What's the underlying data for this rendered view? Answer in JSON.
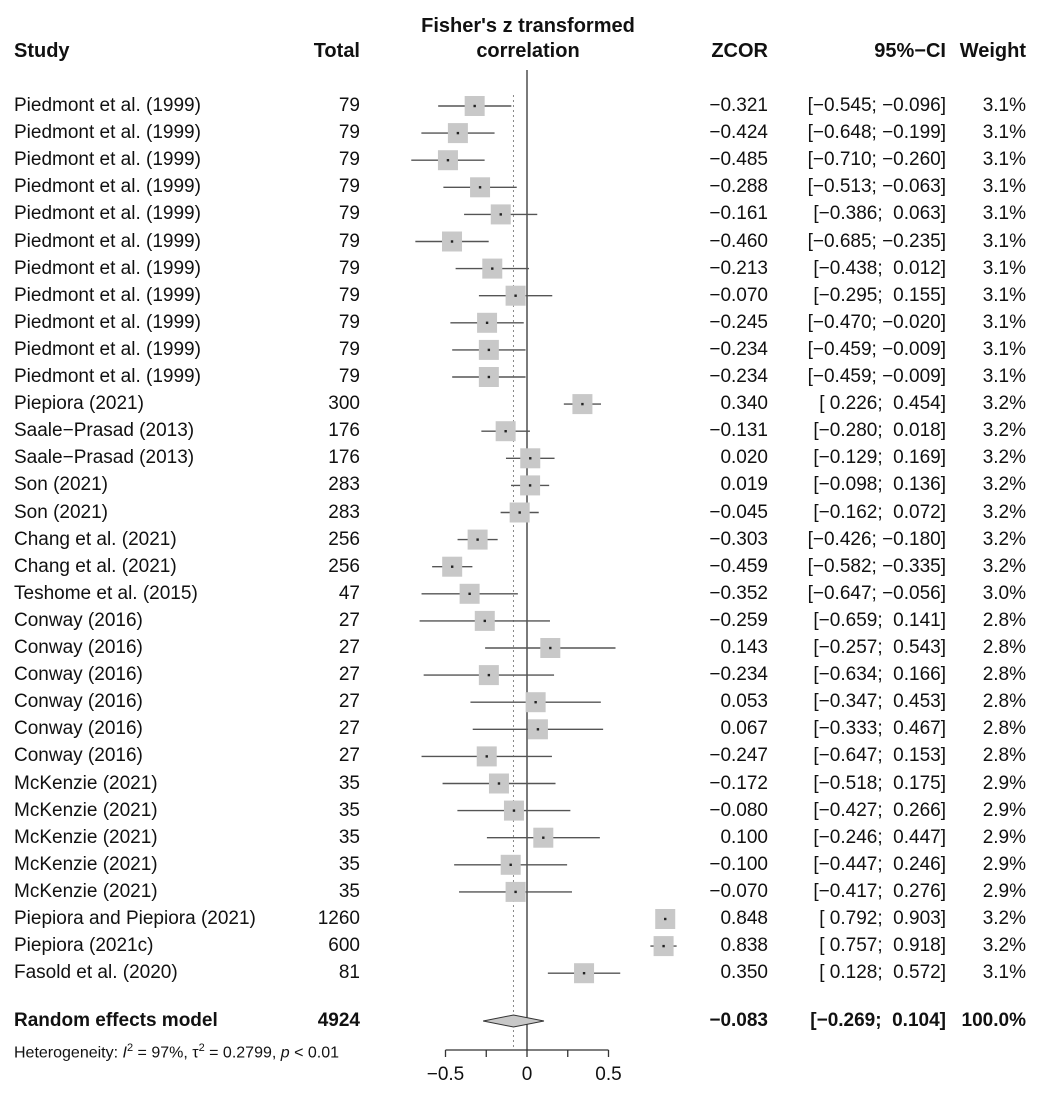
{
  "chart_data": {
    "type": "forest",
    "headers": {
      "study": "Study",
      "total": "Total",
      "plot_title_line1": "Fisher's z transformed",
      "plot_title_line2": "correlation",
      "zcor": "ZCOR",
      "ci": "95%−CI",
      "weight": "Weight"
    },
    "xlim": [
      -0.7,
      0.75
    ],
    "xticks": [
      -0.5,
      0,
      0.5
    ],
    "xtick_labels": [
      "−0.5",
      "0",
      "0.5"
    ],
    "studies": [
      {
        "study": "Piedmont et al. (1999)",
        "total": "79",
        "zcor": -0.321,
        "lo": -0.545,
        "hi": -0.096,
        "zcor_text": "−0.321",
        "ci_text": "[−0.545; −0.096]",
        "weight": "3.1%"
      },
      {
        "study": "Piedmont et al. (1999)",
        "total": "79",
        "zcor": -0.424,
        "lo": -0.648,
        "hi": -0.199,
        "zcor_text": "−0.424",
        "ci_text": "[−0.648; −0.199]",
        "weight": "3.1%"
      },
      {
        "study": "Piedmont et al. (1999)",
        "total": "79",
        "zcor": -0.485,
        "lo": -0.71,
        "hi": -0.26,
        "zcor_text": "−0.485",
        "ci_text": "[−0.710; −0.260]",
        "weight": "3.1%"
      },
      {
        "study": "Piedmont et al. (1999)",
        "total": "79",
        "zcor": -0.288,
        "lo": -0.513,
        "hi": -0.063,
        "zcor_text": "−0.288",
        "ci_text": "[−0.513; −0.063]",
        "weight": "3.1%"
      },
      {
        "study": "Piedmont et al. (1999)",
        "total": "79",
        "zcor": -0.161,
        "lo": -0.386,
        "hi": 0.063,
        "zcor_text": "−0.161",
        "ci_text": "[−0.386;  0.063]",
        "weight": "3.1%"
      },
      {
        "study": "Piedmont et al. (1999)",
        "total": "79",
        "zcor": -0.46,
        "lo": -0.685,
        "hi": -0.235,
        "zcor_text": "−0.460",
        "ci_text": "[−0.685; −0.235]",
        "weight": "3.1%"
      },
      {
        "study": "Piedmont et al. (1999)",
        "total": "79",
        "zcor": -0.213,
        "lo": -0.438,
        "hi": 0.012,
        "zcor_text": "−0.213",
        "ci_text": "[−0.438;  0.012]",
        "weight": "3.1%"
      },
      {
        "study": "Piedmont et al. (1999)",
        "total": "79",
        "zcor": -0.07,
        "lo": -0.295,
        "hi": 0.155,
        "zcor_text": "−0.070",
        "ci_text": "[−0.295;  0.155]",
        "weight": "3.1%"
      },
      {
        "study": "Piedmont et al. (1999)",
        "total": "79",
        "zcor": -0.245,
        "lo": -0.47,
        "hi": -0.02,
        "zcor_text": "−0.245",
        "ci_text": "[−0.470; −0.020]",
        "weight": "3.1%"
      },
      {
        "study": "Piedmont et al. (1999)",
        "total": "79",
        "zcor": -0.234,
        "lo": -0.459,
        "hi": -0.009,
        "zcor_text": "−0.234",
        "ci_text": "[−0.459; −0.009]",
        "weight": "3.1%"
      },
      {
        "study": "Piedmont et al. (1999)",
        "total": "79",
        "zcor": -0.234,
        "lo": -0.459,
        "hi": -0.009,
        "zcor_text": "−0.234",
        "ci_text": "[−0.459; −0.009]",
        "weight": "3.1%"
      },
      {
        "study": "Piepiora (2021)",
        "total": "300",
        "zcor": 0.34,
        "lo": 0.226,
        "hi": 0.454,
        "zcor_text": "0.340",
        "ci_text": "[ 0.226;  0.454]",
        "weight": "3.2%"
      },
      {
        "study": "Saale−Prasad (2013)",
        "total": "176",
        "zcor": -0.131,
        "lo": -0.28,
        "hi": 0.018,
        "zcor_text": "−0.131",
        "ci_text": "[−0.280;  0.018]",
        "weight": "3.2%"
      },
      {
        "study": "Saale−Prasad (2013)",
        "total": "176",
        "zcor": 0.02,
        "lo": -0.129,
        "hi": 0.169,
        "zcor_text": "0.020",
        "ci_text": "[−0.129;  0.169]",
        "weight": "3.2%"
      },
      {
        "study": "Son (2021)",
        "total": "283",
        "zcor": 0.019,
        "lo": -0.098,
        "hi": 0.136,
        "zcor_text": "0.019",
        "ci_text": "[−0.098;  0.136]",
        "weight": "3.2%"
      },
      {
        "study": "Son (2021)",
        "total": "283",
        "zcor": -0.045,
        "lo": -0.162,
        "hi": 0.072,
        "zcor_text": "−0.045",
        "ci_text": "[−0.162;  0.072]",
        "weight": "3.2%"
      },
      {
        "study": "Chang et al. (2021)",
        "total": "256",
        "zcor": -0.303,
        "lo": -0.426,
        "hi": -0.18,
        "zcor_text": "−0.303",
        "ci_text": "[−0.426; −0.180]",
        "weight": "3.2%"
      },
      {
        "study": "Chang et al. (2021)",
        "total": "256",
        "zcor": -0.459,
        "lo": -0.582,
        "hi": -0.335,
        "zcor_text": "−0.459",
        "ci_text": "[−0.582; −0.335]",
        "weight": "3.2%"
      },
      {
        "study": "Teshome et al. (2015)",
        "total": "47",
        "zcor": -0.352,
        "lo": -0.647,
        "hi": -0.056,
        "zcor_text": "−0.352",
        "ci_text": "[−0.647; −0.056]",
        "weight": "3.0%"
      },
      {
        "study": "Conway (2016)",
        "total": "27",
        "zcor": -0.259,
        "lo": -0.659,
        "hi": 0.141,
        "zcor_text": "−0.259",
        "ci_text": "[−0.659;  0.141]",
        "weight": "2.8%"
      },
      {
        "study": "Conway (2016)",
        "total": "27",
        "zcor": 0.143,
        "lo": -0.257,
        "hi": 0.543,
        "zcor_text": "0.143",
        "ci_text": "[−0.257;  0.543]",
        "weight": "2.8%"
      },
      {
        "study": "Conway (2016)",
        "total": "27",
        "zcor": -0.234,
        "lo": -0.634,
        "hi": 0.166,
        "zcor_text": "−0.234",
        "ci_text": "[−0.634;  0.166]",
        "weight": "2.8%"
      },
      {
        "study": "Conway (2016)",
        "total": "27",
        "zcor": 0.053,
        "lo": -0.347,
        "hi": 0.453,
        "zcor_text": "0.053",
        "ci_text": "[−0.347;  0.453]",
        "weight": "2.8%"
      },
      {
        "study": "Conway (2016)",
        "total": "27",
        "zcor": 0.067,
        "lo": -0.333,
        "hi": 0.467,
        "zcor_text": "0.067",
        "ci_text": "[−0.333;  0.467]",
        "weight": "2.8%"
      },
      {
        "study": "Conway (2016)",
        "total": "27",
        "zcor": -0.247,
        "lo": -0.647,
        "hi": 0.153,
        "zcor_text": "−0.247",
        "ci_text": "[−0.647;  0.153]",
        "weight": "2.8%"
      },
      {
        "study": "McKenzie (2021)",
        "total": "35",
        "zcor": -0.172,
        "lo": -0.518,
        "hi": 0.175,
        "zcor_text": "−0.172",
        "ci_text": "[−0.518;  0.175]",
        "weight": "2.9%"
      },
      {
        "study": "McKenzie (2021)",
        "total": "35",
        "zcor": -0.08,
        "lo": -0.427,
        "hi": 0.266,
        "zcor_text": "−0.080",
        "ci_text": "[−0.427;  0.266]",
        "weight": "2.9%"
      },
      {
        "study": "McKenzie (2021)",
        "total": "35",
        "zcor": 0.1,
        "lo": -0.246,
        "hi": 0.447,
        "zcor_text": "0.100",
        "ci_text": "[−0.246;  0.447]",
        "weight": "2.9%"
      },
      {
        "study": "McKenzie (2021)",
        "total": "35",
        "zcor": -0.1,
        "lo": -0.447,
        "hi": 0.246,
        "zcor_text": "−0.100",
        "ci_text": "[−0.447;  0.246]",
        "weight": "2.9%"
      },
      {
        "study": "McKenzie (2021)",
        "total": "35",
        "zcor": -0.07,
        "lo": -0.417,
        "hi": 0.276,
        "zcor_text": "−0.070",
        "ci_text": "[−0.417;  0.276]",
        "weight": "2.9%"
      },
      {
        "study": "Piepiora and Piepiora (2021)",
        "total": "1260",
        "zcor": 0.848,
        "lo": 0.792,
        "hi": 0.903,
        "zcor_text": "0.848",
        "ci_text": "[ 0.792;  0.903]",
        "weight": "3.2%"
      },
      {
        "study": "Piepiora (2021c)",
        "total": "600",
        "zcor": 0.838,
        "lo": 0.757,
        "hi": 0.918,
        "zcor_text": "0.838",
        "ci_text": "[ 0.757;  0.918]",
        "weight": "3.2%"
      },
      {
        "study": "Fasold et al. (2020)",
        "total": "81",
        "zcor": 0.35,
        "lo": 0.128,
        "hi": 0.572,
        "zcor_text": "0.350",
        "ci_text": "[ 0.128;  0.572]",
        "weight": "3.1%"
      }
    ],
    "summary": {
      "label": "Random effects model",
      "total": "4924",
      "zcor": -0.083,
      "lo": -0.269,
      "hi": 0.104,
      "zcor_text": "−0.083",
      "ci_text": "[−0.269;  0.104]",
      "weight": "100.0%"
    },
    "heterogeneity": {
      "prefix": "Heterogeneity: ",
      "i2_symbol": "I",
      "i2_rest": " = 97%, τ",
      "tau_rest": " = 0.2799, ",
      "p_symbol": "p",
      "p_rest": " < 0.01"
    },
    "colors": {
      "square": "#c8c8c8",
      "line": "#555555",
      "axis": "#333333",
      "reference_line": "#333333",
      "dotted_line": "#888888",
      "diamond_fill": "#c8c8c8"
    }
  }
}
